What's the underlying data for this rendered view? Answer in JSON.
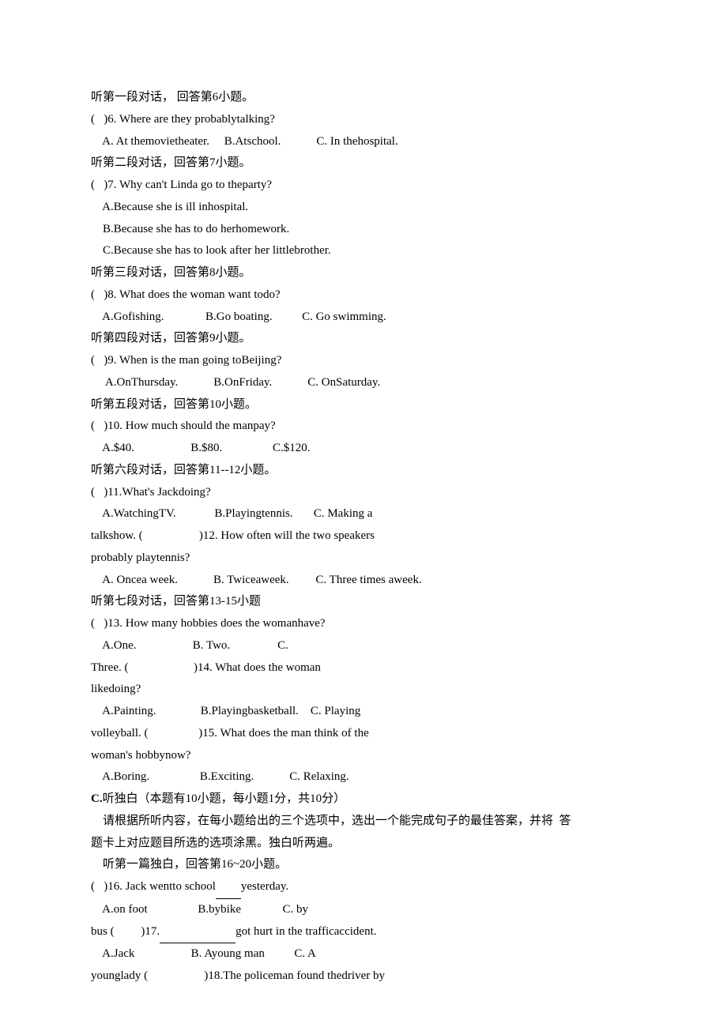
{
  "lines": [
    {
      "text": "听第一段对话， 回答第6小题。"
    },
    {
      "text": "(   )6. Where are they probablytalking?"
    },
    {
      "text": "    A. At themovietheater.     B.Atschool.            C. In thehospital."
    },
    {
      "text": "听第二段对话，回答第7小题。"
    },
    {
      "text": "(   )7. Why can't Linda go to theparty?"
    },
    {
      "text": "    A.Because she is ill inhospital."
    },
    {
      "text": "    B.Because she has to do herhomework."
    },
    {
      "text": "    C.Because she has to look after her littlebrother."
    },
    {
      "text": "听第三段对话，回答第8小题。"
    },
    {
      "text": "(   )8. What does the woman want todo?"
    },
    {
      "text": "    A.Gofishing.              B.Go boating.          C. Go swimming."
    },
    {
      "text": "听第四段对话，回答第9小题。"
    },
    {
      "text": "(   )9. When is the man going toBeijing?"
    },
    {
      "text": "     A.OnThursday.            B.OnFriday.            C. OnSaturday."
    },
    {
      "text": "听第五段对话，回答第10小题。"
    },
    {
      "text": "(   )10. How much should the manpay?"
    },
    {
      "text": "    A.$40.                   B.$80.                 C.$120."
    },
    {
      "text": "听第六段对话，回答第11--12小题。"
    },
    {
      "text": "(   )11.What's Jackdoing?"
    },
    {
      "text": "    A.WatchingTV.             B.Playingtennis.       C. Making a"
    },
    {
      "text": "talkshow. (                   )12. How often will the two speakers"
    },
    {
      "text": "probably playtennis?"
    },
    {
      "text": "    A. Oncea week.            B. Twiceaweek.         C. Three times aweek."
    },
    {
      "text": "听第七段对话，回答第13-15小题"
    },
    {
      "text": "(   )13. How many hobbies does the womanhave?"
    },
    {
      "text": "    A.One.                   B. Two.                C."
    },
    {
      "text": "Three. (                      )14. What does the woman"
    },
    {
      "text": "likedoing?"
    },
    {
      "text": "    A.Painting.               B.Playingbasketball.    C. Playing"
    },
    {
      "text": "volleyball. (                 )15. What does the man think of the"
    },
    {
      "text": "woman's hobbynow?"
    },
    {
      "text": "    A.Boring.                 B.Exciting.            C. Relaxing."
    },
    {
      "text": "C.听独白（本题有10小题，每小题1分，共10分）",
      "boldPrefix": "C."
    },
    {
      "text": "    请根据所听内容，在每小题给出的三个选项中，选出一个能完成句子的最佳答案，并将  答"
    },
    {
      "text": "题卡上对应题目所选的选项涂黑。独白听两遍。"
    },
    {
      "text": "    听第一篇独白，回答第16~20小题。"
    },
    {
      "text": "(   )16. Jack wentto school____yesterday.",
      "blank": "____"
    },
    {
      "text": "    A.on foot                 B.bybike              C. by"
    },
    {
      "text": "bus (         )17.____________got hurt in the trafficaccident.",
      "blank": "____________"
    },
    {
      "text": "    A.Jack                   B. Ayoung man          C. A"
    },
    {
      "text": "younglady (                   )18.The policeman found thedriver by"
    }
  ]
}
